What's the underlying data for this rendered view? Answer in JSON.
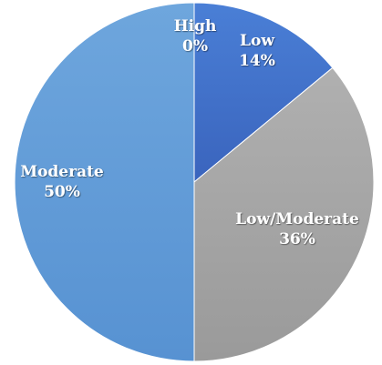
{
  "chart_data": {
    "type": "pie",
    "slices": [
      {
        "label": "High",
        "value": 0,
        "percent_label": "0%",
        "color": "#4472c4"
      },
      {
        "label": "Low",
        "value": 14,
        "percent_label": "14%",
        "color": "#4472c4"
      },
      {
        "label": "Low/Moderate",
        "value": 36,
        "percent_label": "36%",
        "color": "#a5a5a5"
      },
      {
        "label": "Moderate",
        "value": 50,
        "percent_label": "50%",
        "color": "#5b9bd5"
      }
    ],
    "title": "",
    "legend": "none"
  }
}
